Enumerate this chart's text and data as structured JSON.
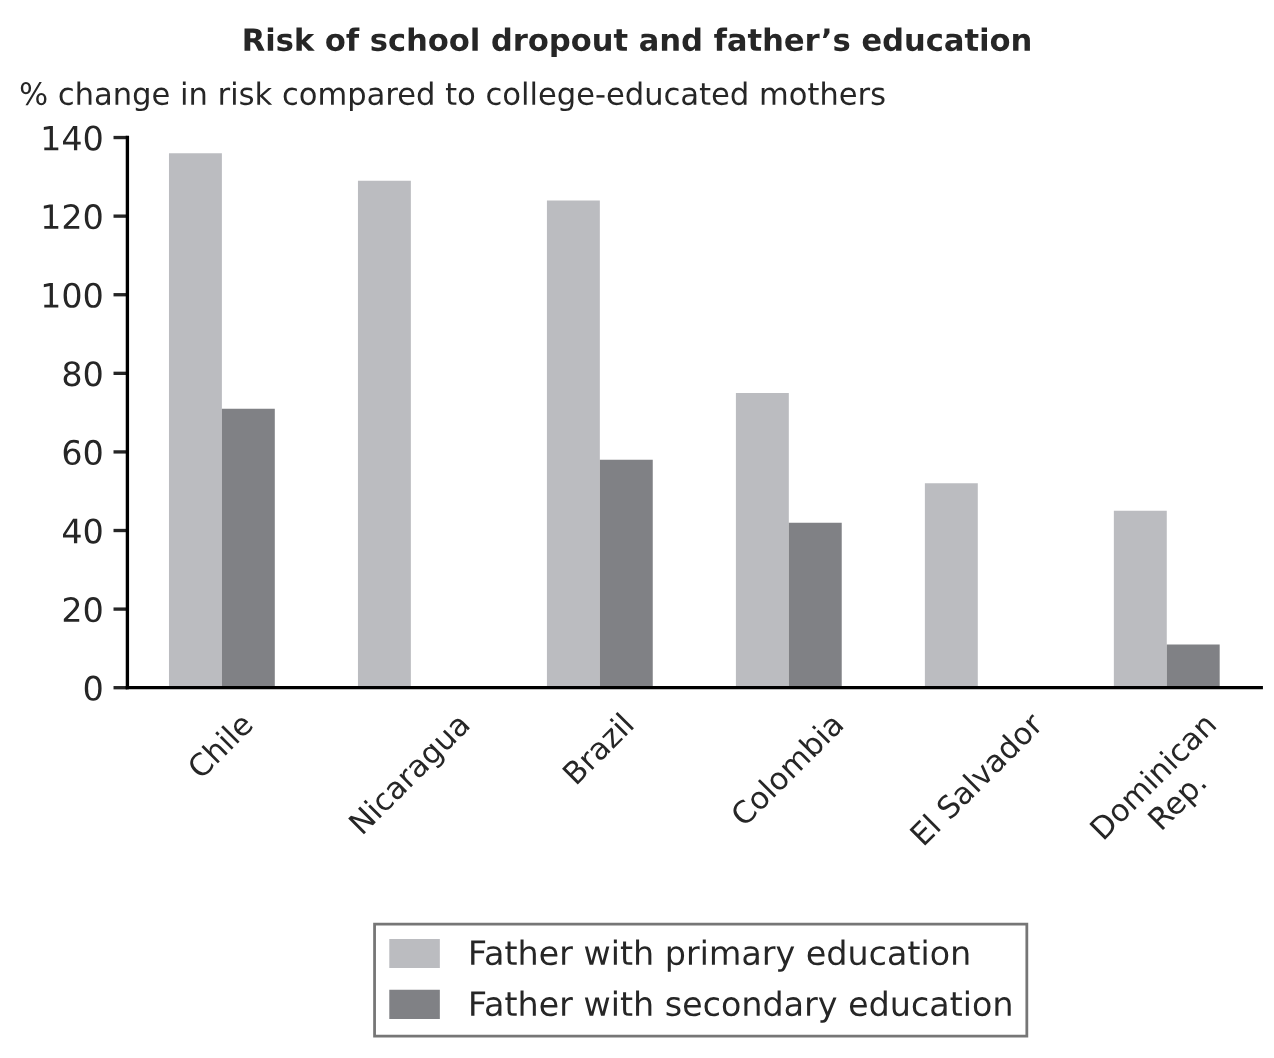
{
  "chart_data": {
    "type": "bar",
    "title": "Risk of school dropout and father’s education",
    "ylabel": "% change in risk compared to college-educated mothers",
    "categories": [
      "Chile",
      "Nicaragua",
      "Brazil",
      "Colombia",
      "El Salvador",
      "Dominican\nRep."
    ],
    "series": [
      {
        "name": "Father with primary education",
        "color": "#bbbcc0",
        "values": [
          136,
          129,
          124,
          75,
          52,
          45
        ]
      },
      {
        "name": "Father with secondary education",
        "color": "#808185",
        "values": [
          71,
          null,
          58,
          42,
          null,
          11
        ]
      }
    ],
    "ylim": [
      0,
      140
    ],
    "yticks": [
      0,
      20,
      40,
      60,
      80,
      100,
      120,
      140
    ],
    "grid": false,
    "legend": "bottom"
  }
}
